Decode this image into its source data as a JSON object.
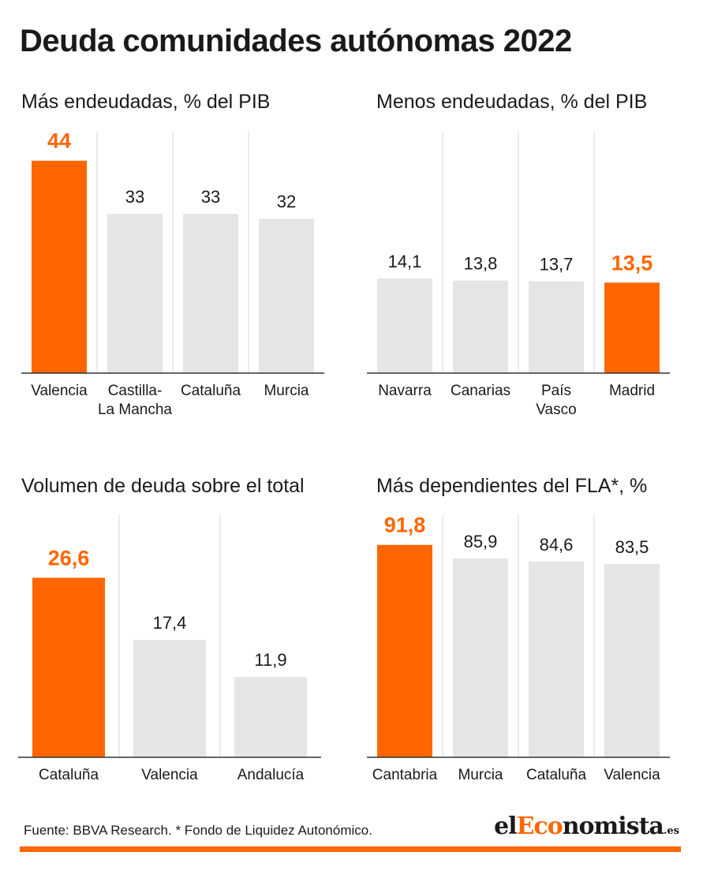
{
  "title": "Deuda comunidades autónomas 2022",
  "colors": {
    "highlight": "#ff6600",
    "bar": "#e5e5e5",
    "grid": "#e5e5e5",
    "axis": "#333333"
  },
  "chart_data": [
    {
      "type": "bar",
      "title": "Más endeudadas, % del PIB",
      "categories": [
        [
          "Valencia"
        ],
        [
          "Castilla-",
          "La Mancha"
        ],
        [
          "Cataluña"
        ],
        [
          "Murcia"
        ]
      ],
      "values": [
        44,
        33,
        33,
        32
      ],
      "value_labels": [
        "44",
        "33",
        "33",
        "32"
      ],
      "highlight_index": 0,
      "ylim": [
        0,
        50
      ]
    },
    {
      "type": "bar",
      "title": "Menos endeudadas, % del PIB",
      "categories": [
        [
          "Navarra"
        ],
        [
          "Canarias"
        ],
        [
          "País",
          "Vasco"
        ],
        [
          "Madrid"
        ]
      ],
      "values": [
        14.1,
        13.8,
        13.7,
        13.5
      ],
      "value_labels": [
        "14,1",
        "13,8",
        "13,7",
        "13,5"
      ],
      "highlight_index": 3,
      "ylim": [
        0,
        36
      ]
    },
    {
      "type": "bar",
      "title": "Volumen de deuda sobre el total",
      "categories": [
        [
          "Cataluña"
        ],
        [
          "Valencia"
        ],
        [
          "Andalucía"
        ]
      ],
      "values": [
        26.6,
        17.4,
        11.9
      ],
      "value_labels": [
        "26,6",
        "17,4",
        "11,9"
      ],
      "highlight_index": 0,
      "ylim": [
        0,
        36
      ]
    },
    {
      "type": "bar",
      "title": "Más dependientes del FLA*, %",
      "categories": [
        [
          "Cantabria"
        ],
        [
          "Murcia"
        ],
        [
          "Cataluña"
        ],
        [
          "Valencia"
        ]
      ],
      "values": [
        91.8,
        85.9,
        84.6,
        83.5
      ],
      "value_labels": [
        "91,8",
        "85,9",
        "84,6",
        "83,5"
      ],
      "highlight_index": 0,
      "ylim": [
        0,
        105
      ]
    }
  ],
  "footer": {
    "source": "Fuente: BBVA Research. * Fondo de Liquidez Autonómico.",
    "brand_prefix": "el",
    "brand_accent": "Eco",
    "brand_rest": "nomista",
    "brand_tld": ".es"
  }
}
